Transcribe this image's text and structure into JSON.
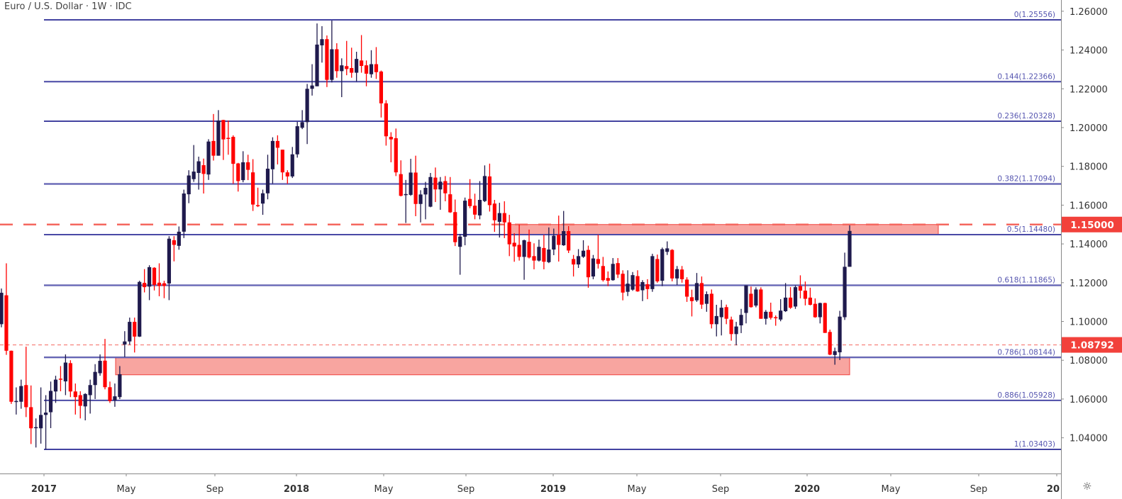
{
  "header": {
    "title": "Euro / U.S. Dollar · 1W · IDC"
  },
  "colors": {
    "up": "#1f1a4d",
    "down": "#ff0000",
    "fib": "#2b2b8f",
    "fib_label": "#5656b0",
    "annotation": "#f5675f",
    "zone_fill": "#f8a5a0",
    "zone_stroke": "#f0403c",
    "price_badge": "#f2413b"
  },
  "settings_icon": "gear-icon",
  "chart_data": {
    "type": "candlestick",
    "interval": "1W",
    "y_axis": {
      "ticks": [
        "1.26000",
        "1.24000",
        "1.22000",
        "1.20000",
        "1.18000",
        "1.16000",
        "1.14000",
        "1.12000",
        "1.10000",
        "1.08000",
        "1.06000",
        "1.04000"
      ],
      "range": [
        1.022,
        1.265
      ]
    },
    "x_axis": {
      "ticks": [
        {
          "label": "2017",
          "bold": true
        },
        {
          "label": "May",
          "bold": false
        },
        {
          "label": "Sep",
          "bold": false
        },
        {
          "label": "2018",
          "bold": true
        },
        {
          "label": "May",
          "bold": false
        },
        {
          "label": "Sep",
          "bold": false
        },
        {
          "label": "2019",
          "bold": true
        },
        {
          "label": "May",
          "bold": false
        },
        {
          "label": "Sep",
          "bold": false
        },
        {
          "label": "2020",
          "bold": true
        },
        {
          "label": "May",
          "bold": false
        },
        {
          "label": "Sep",
          "bold": false
        },
        {
          "label": "20",
          "bold": true
        }
      ]
    },
    "fib_levels": [
      {
        "ratio": "0",
        "price": 1.25556,
        "label": "0(1.25556)"
      },
      {
        "ratio": "0.144",
        "price": 1.22366,
        "label": "0.144(1.22366)"
      },
      {
        "ratio": "0.236",
        "price": 1.20328,
        "label": "0.236(1.20328)"
      },
      {
        "ratio": "0.382",
        "price": 1.17094,
        "label": "0.382(1.17094)"
      },
      {
        "ratio": "0.5",
        "price": 1.1448,
        "label": "0.5(1.14480)"
      },
      {
        "ratio": "0.618",
        "price": 1.11865,
        "label": "0.618(1.11865)"
      },
      {
        "ratio": "0.786",
        "price": 1.08144,
        "label": "0.786(1.08144)"
      },
      {
        "ratio": "0.886",
        "price": 1.05928,
        "label": "0.886(1.05928)"
      },
      {
        "ratio": "1",
        "price": 1.03403,
        "label": "1(1.03403)"
      }
    ],
    "horizontal_lines": [
      {
        "price": 1.15,
        "label": "1.15000",
        "style": "dashed-thick"
      },
      {
        "price": 1.08792,
        "label": "1.08792",
        "style": "dashed-thin"
      }
    ],
    "zones": [
      {
        "top": 1.15,
        "bottom": 1.1448
      },
      {
        "top": 1.08144,
        "bottom": 1.0725
      }
    ],
    "ohlc": [
      [
        1.0986,
        1.117,
        1.097,
        1.1148
      ],
      [
        1.1135,
        1.13,
        1.0828,
        1.0849
      ],
      [
        1.0849,
        1.085,
        1.0575,
        1.0586
      ],
      [
        1.0585,
        1.066,
        1.052,
        1.059
      ],
      [
        1.0586,
        1.07,
        1.055,
        1.0667
      ],
      [
        1.0672,
        1.087,
        1.0507,
        1.0558
      ],
      [
        1.0558,
        1.067,
        1.0368,
        1.0449
      ],
      [
        1.0453,
        1.05,
        1.035,
        1.0455
      ],
      [
        1.0449,
        1.066,
        1.037,
        1.0518
      ],
      [
        1.0518,
        1.062,
        1.034,
        1.053
      ],
      [
        1.0532,
        1.069,
        1.045,
        1.0642
      ],
      [
        1.0639,
        1.072,
        1.058,
        1.07
      ],
      [
        1.0705,
        1.077,
        1.064,
        1.0703
      ],
      [
        1.0691,
        1.083,
        1.062,
        1.0788
      ],
      [
        1.0785,
        1.08,
        1.061,
        1.0639
      ],
      [
        1.0639,
        1.068,
        1.052,
        1.061
      ],
      [
        1.062,
        1.064,
        1.05,
        1.0565
      ],
      [
        1.0562,
        1.063,
        1.049,
        1.0626
      ],
      [
        1.062,
        1.07,
        1.0525,
        1.0672
      ],
      [
        1.0672,
        1.078,
        1.06,
        1.074
      ],
      [
        1.0733,
        1.083,
        1.072,
        1.0797
      ],
      [
        1.0798,
        1.091,
        1.065,
        1.0661
      ],
      [
        1.0661,
        1.069,
        1.058,
        1.059
      ],
      [
        1.0593,
        1.068,
        1.056,
        1.0614
      ],
      [
        1.061,
        1.077,
        1.06,
        1.0728
      ],
      [
        1.0881,
        1.095,
        1.0817,
        1.0897
      ],
      [
        1.0897,
        1.102,
        1.088,
        1.0998
      ],
      [
        1.0998,
        1.102,
        1.084,
        1.0922
      ],
      [
        1.0922,
        1.121,
        1.092,
        1.1204
      ],
      [
        1.1199,
        1.127,
        1.115,
        1.1177
      ],
      [
        1.118,
        1.129,
        1.111,
        1.128
      ],
      [
        1.1277,
        1.128,
        1.116,
        1.1189
      ],
      [
        1.12,
        1.13,
        1.113,
        1.1183
      ],
      [
        1.1197,
        1.121,
        1.112,
        1.1183
      ],
      [
        1.1196,
        1.144,
        1.111,
        1.1427
      ],
      [
        1.1419,
        1.144,
        1.131,
        1.1395
      ],
      [
        1.139,
        1.149,
        1.137,
        1.1463
      ],
      [
        1.1463,
        1.168,
        1.143,
        1.166
      ],
      [
        1.1656,
        1.178,
        1.161,
        1.1753
      ],
      [
        1.1734,
        1.191,
        1.172,
        1.1773
      ],
      [
        1.1766,
        1.185,
        1.168,
        1.1826
      ],
      [
        1.1806,
        1.184,
        1.166,
        1.1761
      ],
      [
        1.1758,
        1.194,
        1.173,
        1.1928
      ],
      [
        1.1931,
        1.207,
        1.183,
        1.1855
      ],
      [
        1.1855,
        1.209,
        1.1855,
        1.2036
      ],
      [
        1.2039,
        1.204,
        1.1833,
        1.1939
      ],
      [
        1.1947,
        1.2036,
        1.186,
        1.1945
      ],
      [
        1.1952,
        1.196,
        1.171,
        1.1813
      ],
      [
        1.1815,
        1.1818,
        1.167,
        1.1724
      ],
      [
        1.1729,
        1.1878,
        1.1718,
        1.1821
      ],
      [
        1.1821,
        1.186,
        1.1729,
        1.1782
      ],
      [
        1.1769,
        1.1837,
        1.157,
        1.1603
      ],
      [
        1.16,
        1.169,
        1.159,
        1.1598
      ],
      [
        1.1608,
        1.168,
        1.155,
        1.1661
      ],
      [
        1.1661,
        1.186,
        1.163,
        1.1788
      ],
      [
        1.1785,
        1.195,
        1.171,
        1.1931
      ],
      [
        1.1931,
        1.196,
        1.181,
        1.1896
      ],
      [
        1.1886,
        1.1886,
        1.173,
        1.1769
      ],
      [
        1.1769,
        1.178,
        1.171,
        1.1748
      ],
      [
        1.1748,
        1.19,
        1.174,
        1.1862
      ],
      [
        1.1862,
        1.203,
        1.1845,
        1.2007
      ],
      [
        1.1999,
        1.209,
        1.1992,
        1.2028
      ],
      [
        1.2028,
        1.2225,
        1.1915,
        1.22
      ],
      [
        1.22,
        1.2327,
        1.2165,
        1.2217
      ],
      [
        1.2213,
        1.2537,
        1.2213,
        1.2428
      ],
      [
        1.2424,
        1.2523,
        1.2335,
        1.2456
      ],
      [
        1.2456,
        1.2475,
        1.2209,
        1.2246
      ],
      [
        1.2246,
        1.2552,
        1.2233,
        1.2404
      ],
      [
        1.2404,
        1.2435,
        1.2257,
        1.2291
      ],
      [
        1.2291,
        1.2357,
        1.2157,
        1.2321
      ],
      [
        1.2317,
        1.2447,
        1.227,
        1.2302
      ],
      [
        1.2307,
        1.2412,
        1.2257,
        1.2283
      ],
      [
        1.2283,
        1.2391,
        1.2237,
        1.2354
      ],
      [
        1.2346,
        1.2477,
        1.2283,
        1.2318
      ],
      [
        1.2321,
        1.2346,
        1.2213,
        1.2278
      ],
      [
        1.2275,
        1.2399,
        1.2257,
        1.2327
      ],
      [
        1.2327,
        1.2415,
        1.2251,
        1.2286
      ],
      [
        1.2289,
        1.2294,
        1.2052,
        1.2125
      ],
      [
        1.2125,
        1.2141,
        1.1907,
        1.1955
      ],
      [
        1.1952,
        1.1976,
        1.1821,
        1.1939
      ],
      [
        1.1945,
        1.1995,
        1.175,
        1.1769
      ],
      [
        1.176,
        1.1831,
        1.1645,
        1.1648
      ],
      [
        1.1655,
        1.173,
        1.1508,
        1.1657
      ],
      [
        1.1653,
        1.1839,
        1.1648,
        1.1768
      ],
      [
        1.1768,
        1.1855,
        1.1543,
        1.1606
      ],
      [
        1.1606,
        1.1677,
        1.1511,
        1.1655
      ],
      [
        1.1655,
        1.172,
        1.1527,
        1.1689
      ],
      [
        1.1592,
        1.1766,
        1.1589,
        1.1745
      ],
      [
        1.1742,
        1.1794,
        1.1616,
        1.1681
      ],
      [
        1.1681,
        1.1745,
        1.1576,
        1.1721
      ],
      [
        1.1724,
        1.175,
        1.162,
        1.1661
      ],
      [
        1.1656,
        1.1745,
        1.156,
        1.1563
      ],
      [
        1.1564,
        1.1629,
        1.1389,
        1.1409
      ],
      [
        1.1385,
        1.145,
        1.1241,
        1.1438
      ],
      [
        1.1437,
        1.1639,
        1.1393,
        1.1623
      ],
      [
        1.1632,
        1.1734,
        1.1584,
        1.1595
      ],
      [
        1.1597,
        1.1659,
        1.1527,
        1.1551
      ],
      [
        1.1547,
        1.1724,
        1.1527,
        1.1627
      ],
      [
        1.1621,
        1.1805,
        1.1616,
        1.175
      ],
      [
        1.1748,
        1.1814,
        1.1567,
        1.16
      ],
      [
        1.1608,
        1.1627,
        1.1462,
        1.1522
      ],
      [
        1.1514,
        1.1612,
        1.1433,
        1.1559
      ],
      [
        1.1559,
        1.162,
        1.143,
        1.1511
      ],
      [
        1.1511,
        1.155,
        1.1337,
        1.1398
      ],
      [
        1.1406,
        1.1455,
        1.1308,
        1.1387
      ],
      [
        1.1395,
        1.15,
        1.1314,
        1.1333
      ],
      [
        1.1333,
        1.1422,
        1.1215,
        1.1419
      ],
      [
        1.1411,
        1.1474,
        1.1325,
        1.133
      ],
      [
        1.1337,
        1.1403,
        1.1269,
        1.1314
      ],
      [
        1.1314,
        1.1422,
        1.1309,
        1.1385
      ],
      [
        1.1379,
        1.1447,
        1.1269,
        1.1308
      ],
      [
        1.1306,
        1.1485,
        1.1301,
        1.1371
      ],
      [
        1.1371,
        1.1479,
        1.1342,
        1.1442
      ],
      [
        1.1447,
        1.1546,
        1.1309,
        1.1395
      ],
      [
        1.1393,
        1.157,
        1.139,
        1.1466
      ],
      [
        1.1466,
        1.1492,
        1.1353,
        1.1366
      ],
      [
        1.1322,
        1.1343,
        1.1232,
        1.1294
      ],
      [
        1.1294,
        1.1373,
        1.1276,
        1.1337
      ],
      [
        1.1334,
        1.1419,
        1.1328,
        1.1365
      ],
      [
        1.1369,
        1.1391,
        1.1174,
        1.1228
      ],
      [
        1.1232,
        1.1343,
        1.1218,
        1.1325
      ],
      [
        1.1322,
        1.1448,
        1.1273,
        1.1297
      ],
      [
        1.1286,
        1.1333,
        1.1206,
        1.1213
      ],
      [
        1.1224,
        1.1258,
        1.1182,
        1.121
      ],
      [
        1.1213,
        1.1327,
        1.121,
        1.1297
      ],
      [
        1.1301,
        1.1327,
        1.1224,
        1.1242
      ],
      [
        1.1246,
        1.1264,
        1.1109,
        1.1149
      ],
      [
        1.1153,
        1.1264,
        1.1131,
        1.1195
      ],
      [
        1.1164,
        1.1255,
        1.1158,
        1.1239
      ],
      [
        1.1234,
        1.1264,
        1.1153,
        1.1155
      ],
      [
        1.1161,
        1.1213,
        1.1105,
        1.1203
      ],
      [
        1.1192,
        1.1218,
        1.1115,
        1.1167
      ],
      [
        1.1167,
        1.1349,
        1.1153,
        1.1337
      ],
      [
        1.1322,
        1.1345,
        1.12,
        1.1207
      ],
      [
        1.121,
        1.1381,
        1.1182,
        1.1373
      ],
      [
        1.1359,
        1.1413,
        1.1343,
        1.1377
      ],
      [
        1.1369,
        1.1373,
        1.1207,
        1.1222
      ],
      [
        1.1222,
        1.1286,
        1.1188,
        1.127
      ],
      [
        1.1268,
        1.1286,
        1.12,
        1.1218
      ],
      [
        1.1216,
        1.1228,
        1.1101,
        1.1128
      ],
      [
        1.1125,
        1.1164,
        1.1026,
        1.1105
      ],
      [
        1.1109,
        1.125,
        1.1101,
        1.1198
      ],
      [
        1.1198,
        1.1232,
        1.1065,
        1.1087
      ],
      [
        1.1091,
        1.1155,
        1.105,
        1.1141
      ],
      [
        1.1143,
        1.1165,
        1.0964,
        1.0986
      ],
      [
        1.0986,
        1.1086,
        1.0923,
        1.1028
      ],
      [
        1.1022,
        1.1111,
        1.0928,
        1.1071
      ],
      [
        1.1074,
        1.1087,
        1.0986,
        1.1014
      ],
      [
        1.101,
        1.1025,
        1.0901,
        1.0935
      ],
      [
        1.0935,
        1.0998,
        1.0877,
        1.0974
      ],
      [
        1.098,
        1.1065,
        1.094,
        1.1034
      ],
      [
        1.1044,
        1.1186,
        1.099,
        1.1186
      ],
      [
        1.1143,
        1.118,
        1.1071,
        1.1074
      ],
      [
        1.1082,
        1.1176,
        1.1073,
        1.1165
      ],
      [
        1.1165,
        1.1176,
        1.1014,
        1.1014
      ],
      [
        1.1014,
        1.1059,
        1.0984,
        1.105
      ],
      [
        1.105,
        1.1097,
        1.101,
        1.1019
      ],
      [
        1.1022,
        1.1031,
        1.0978,
        1.1021
      ],
      [
        1.101,
        1.1115,
        1.1001,
        1.1056
      ],
      [
        1.1053,
        1.1198,
        1.1049,
        1.1123
      ],
      [
        1.1123,
        1.1177,
        1.1065,
        1.1071
      ],
      [
        1.1077,
        1.1186,
        1.1065,
        1.1177
      ],
      [
        1.1182,
        1.1238,
        1.1119,
        1.1159
      ],
      [
        1.1159,
        1.1206,
        1.1083,
        1.1117
      ],
      [
        1.1123,
        1.1174,
        1.1083,
        1.1086
      ],
      [
        1.1091,
        1.1119,
        1.1019,
        1.1022
      ],
      [
        1.1022,
        1.1097,
        1.099,
        1.1095
      ],
      [
        1.1095,
        1.1097,
        1.0941,
        1.0941
      ],
      [
        1.0946,
        1.0958,
        1.0826,
        1.0829
      ],
      [
        1.0827,
        1.0865,
        1.0777,
        1.0847
      ],
      [
        1.0841,
        1.1055,
        1.0801,
        1.1025
      ],
      [
        1.1022,
        1.1355,
        1.1008,
        1.1282
      ],
      [
        1.1282,
        1.1496,
        1.1282,
        1.1467
      ]
    ]
  }
}
